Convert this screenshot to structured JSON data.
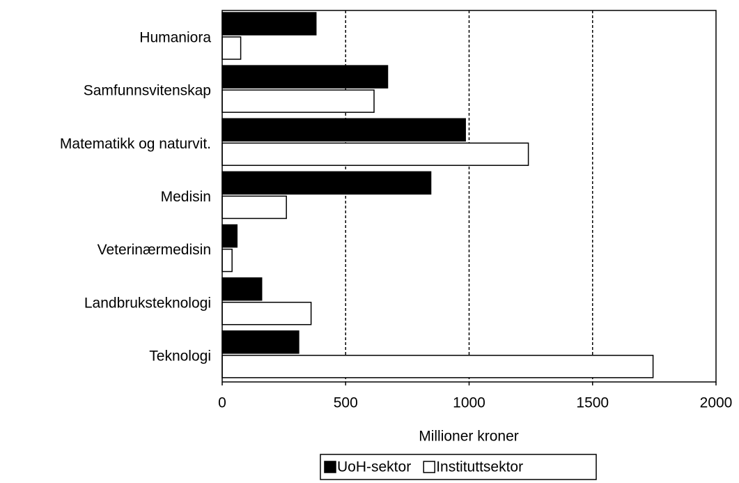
{
  "chart_data": {
    "type": "bar",
    "orientation": "horizontal",
    "x_label": "Millioner kroner",
    "categories": [
      "Humaniora",
      "Samfunnsvitenskap",
      "Matematikk og naturvit.",
      "Medisin",
      "Veterinærmedisin",
      "Landbruksteknologi",
      "Teknologi"
    ],
    "series": [
      {
        "name": "UoH-sektor",
        "color": "#000000",
        "values": [
          380,
          670,
          985,
          845,
          60,
          160,
          310
        ]
      },
      {
        "name": "Instituttsektor",
        "color": "#ffffff",
        "values": [
          75,
          615,
          1240,
          260,
          40,
          360,
          1745
        ]
      }
    ],
    "xlim": [
      0,
      2000
    ],
    "xticks": [
      0,
      500,
      1000,
      1500,
      2000
    ],
    "grid": true,
    "legend": "bottom"
  }
}
